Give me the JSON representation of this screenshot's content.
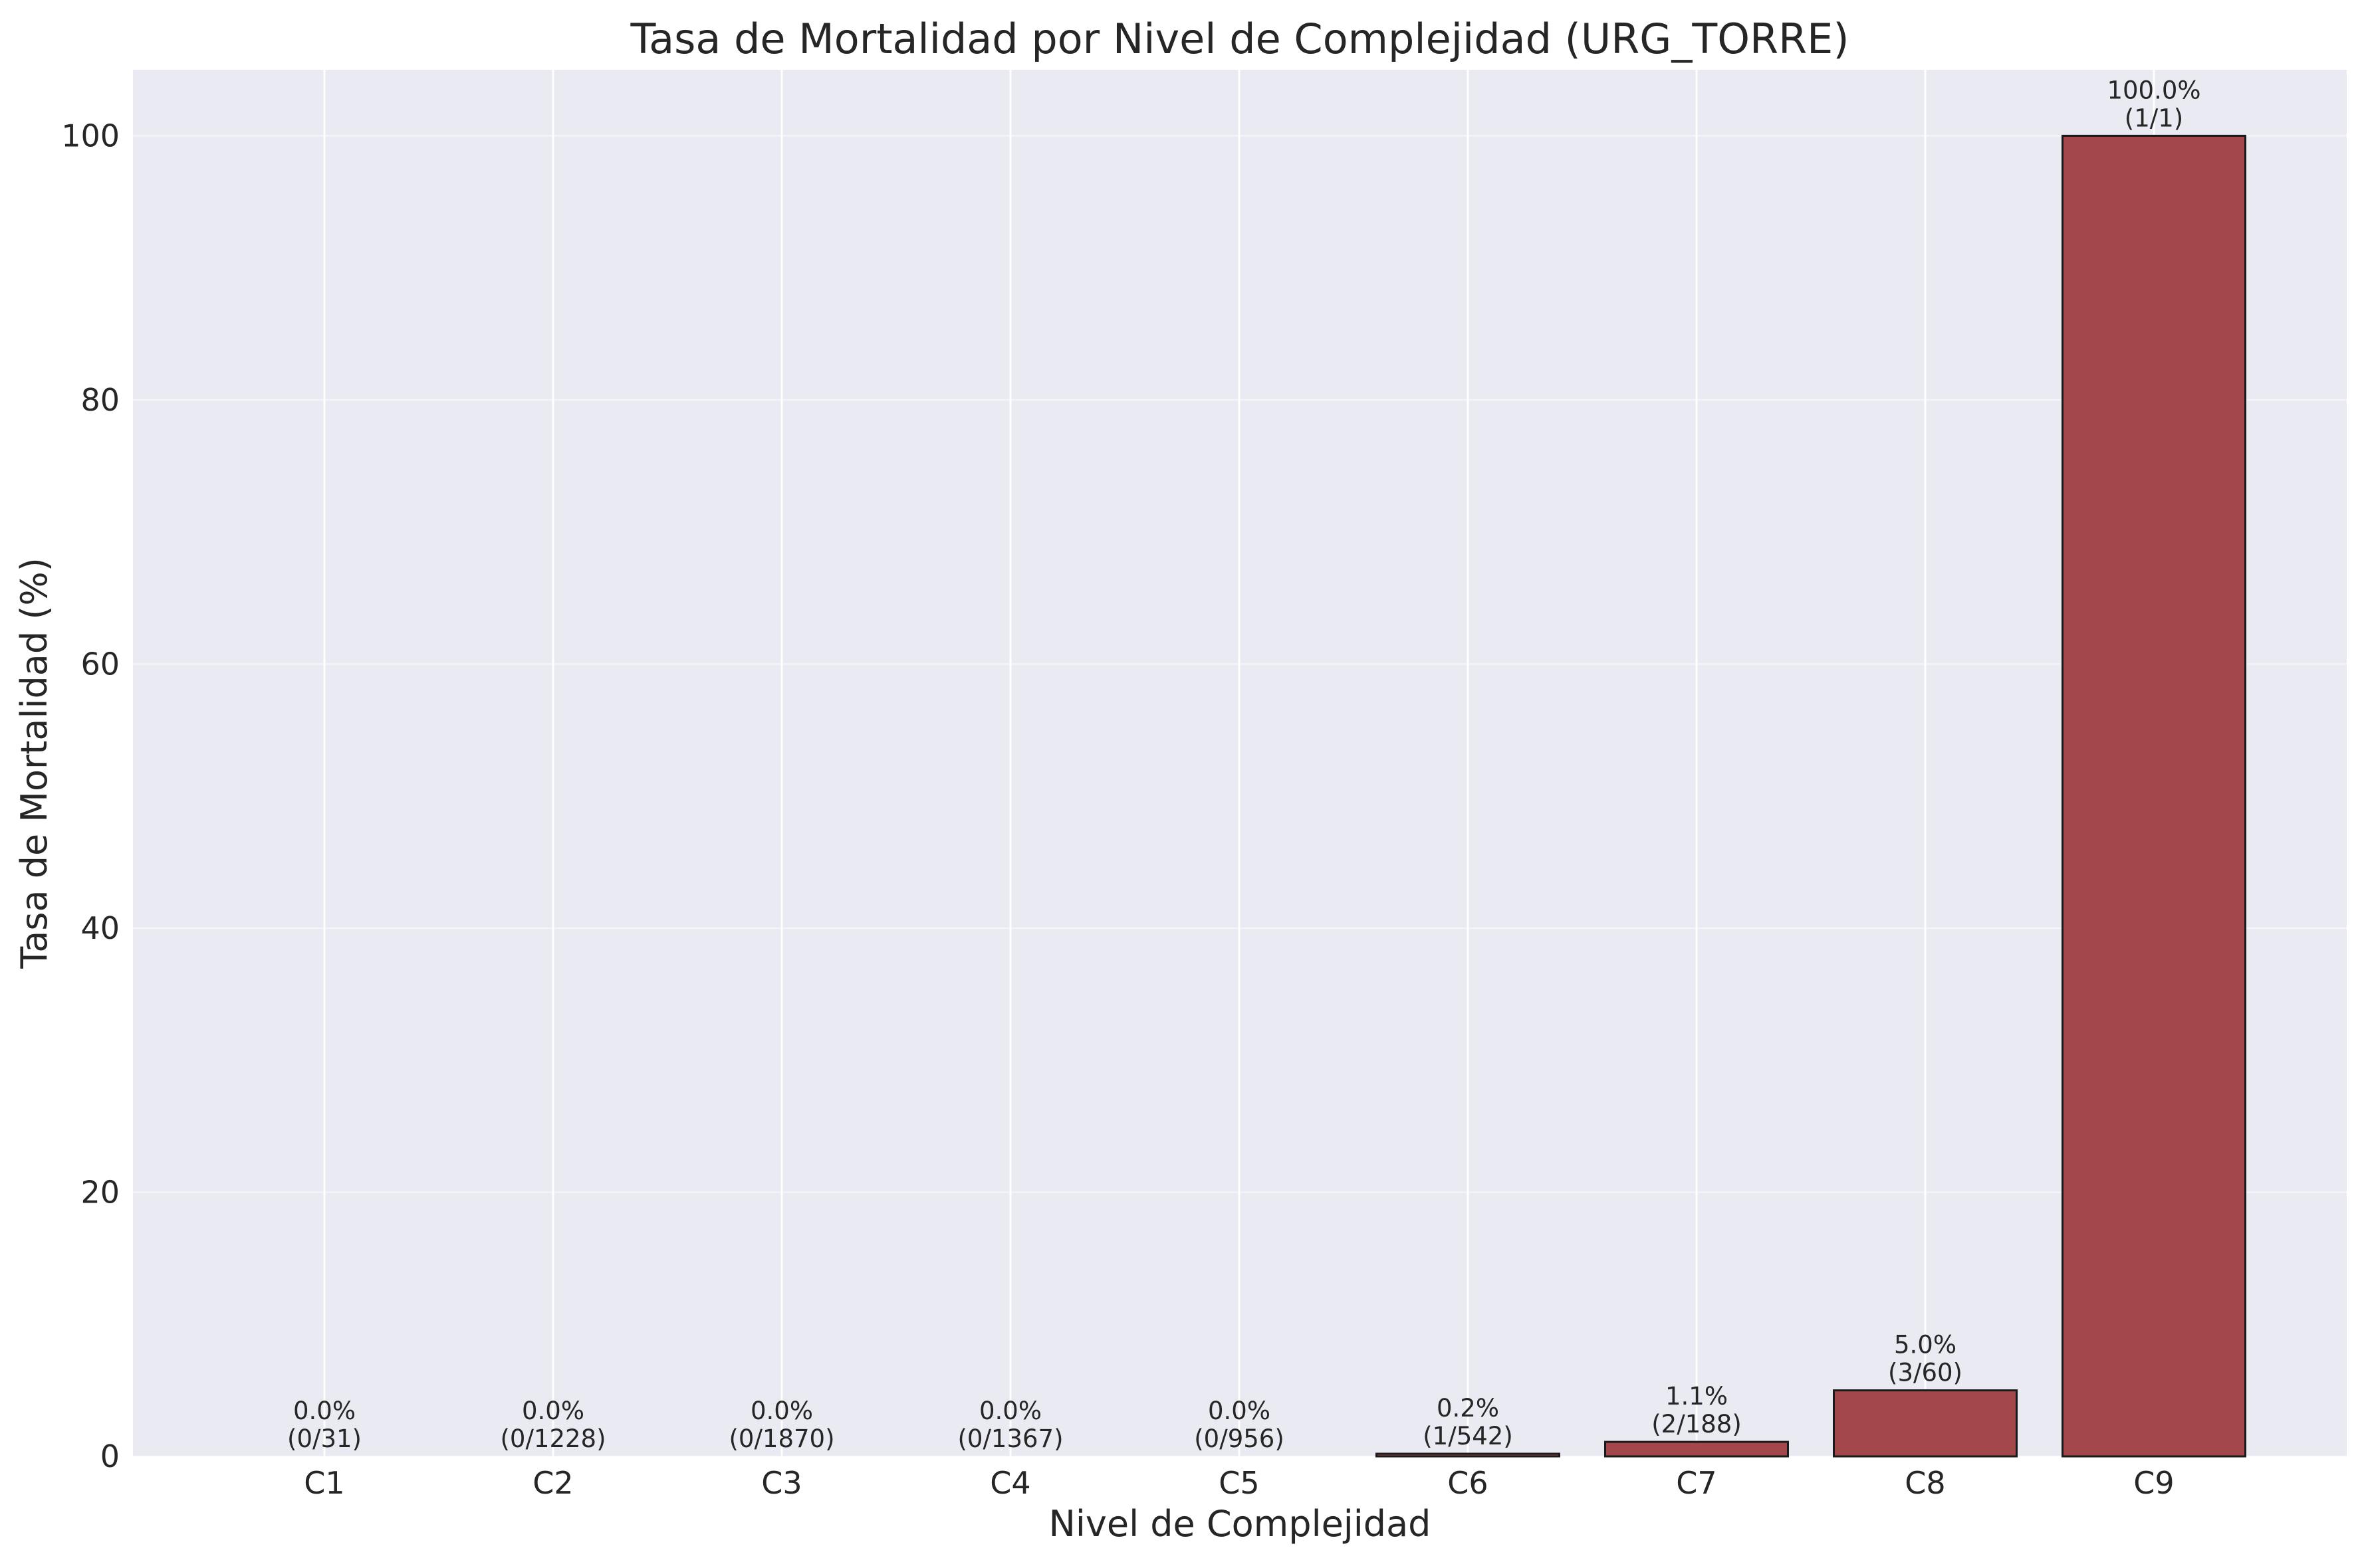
{
  "chart_data": {
    "type": "bar",
    "title": "Tasa de Mortalidad por Nivel de Complejidad (URG_TORRE)",
    "xlabel": "Nivel de Complejidad",
    "ylabel": "Tasa de Mortalidad (%)",
    "categories": [
      "C1",
      "C2",
      "C3",
      "C4",
      "C5",
      "C6",
      "C7",
      "C8",
      "C9"
    ],
    "values": [
      0.0,
      0.0,
      0.0,
      0.0,
      0.0,
      0.2,
      1.1,
      5.0,
      100.0
    ],
    "value_labels": [
      "0.0%",
      "0.0%",
      "0.0%",
      "0.0%",
      "0.0%",
      "0.2%",
      "1.1%",
      "5.0%",
      "100.0%"
    ],
    "count_labels": [
      "(0/31)",
      "(0/1228)",
      "(0/1870)",
      "(0/1367)",
      "(0/956)",
      "(1/542)",
      "(2/188)",
      "(3/60)",
      "(1/1)"
    ],
    "ylim": [
      0,
      105
    ],
    "yticks": [
      0,
      20,
      40,
      60,
      80,
      100
    ],
    "grid": true,
    "colors": {
      "bar_fill": "#a4474a",
      "bar_edge": "#1a1a1a",
      "plot_background": "#eaeaf2",
      "grid": "#ffffff"
    }
  }
}
